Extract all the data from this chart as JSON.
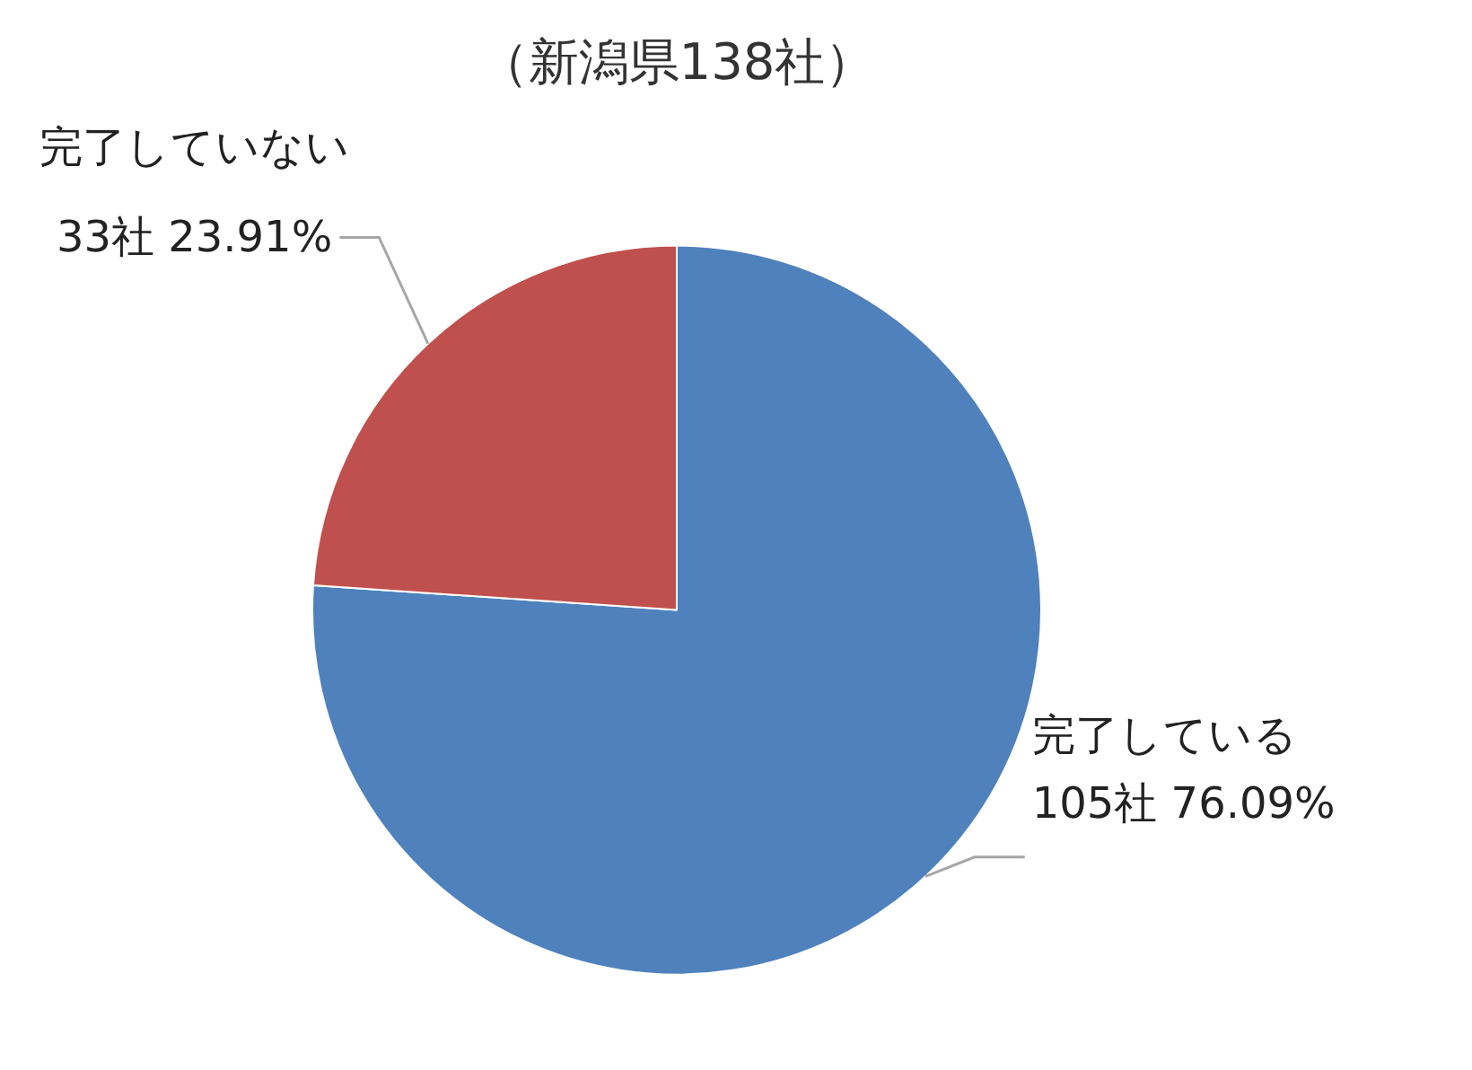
{
  "chart_data": {
    "type": "pie",
    "title": "（新潟県138社）",
    "categories": [
      "完了している",
      "完了していない"
    ],
    "values": [
      105,
      33
    ],
    "colors": [
      "#4f81bd",
      "#c0504d"
    ],
    "value_labels": [
      "105社 76.09%",
      "33社 23.91%"
    ]
  }
}
